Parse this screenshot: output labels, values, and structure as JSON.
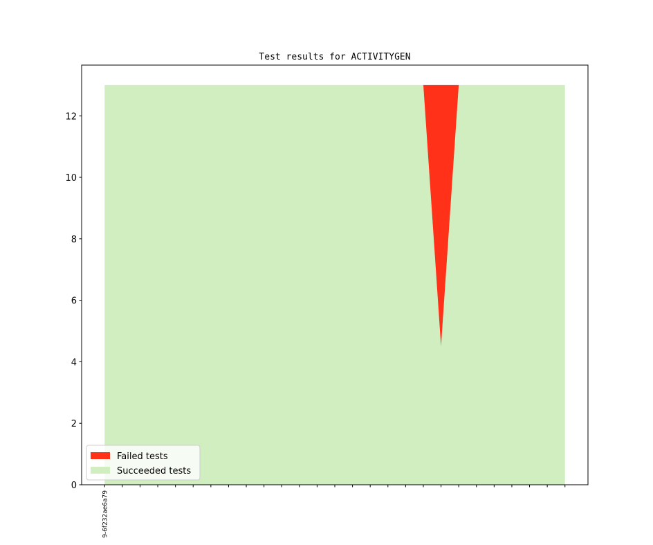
{
  "chart_data": {
    "type": "stacked_area",
    "title": "Test results for ACTIVITYGEN",
    "categories": [
      "9-6f232ae6a79",
      null,
      null,
      null,
      null,
      null,
      null,
      null,
      null,
      null,
      null,
      null,
      null,
      null,
      null,
      null,
      null,
      null,
      null,
      null,
      null,
      null,
      null,
      null,
      null,
      null,
      null
    ],
    "series": [
      {
        "name": "Succeeded tests",
        "color": "#d0eec0",
        "values": [
          13,
          13,
          13,
          13,
          13,
          13,
          13,
          13,
          13,
          13,
          13,
          13,
          13,
          13,
          13,
          13,
          13,
          13,
          13,
          4.5,
          13,
          13,
          13,
          13,
          13,
          13,
          13
        ]
      },
      {
        "name": "Failed tests",
        "color": "#ff3118",
        "values": [
          0,
          0,
          0,
          0,
          0,
          0,
          0,
          0,
          0,
          0,
          0,
          0,
          0,
          0,
          0,
          0,
          0,
          0,
          0,
          8.5,
          0,
          0,
          0,
          0,
          0,
          0,
          0
        ]
      }
    ],
    "ylim": [
      0,
      13.65
    ],
    "yticks": [
      0,
      2,
      4,
      6,
      8,
      10,
      12
    ],
    "legend": "lower left"
  }
}
